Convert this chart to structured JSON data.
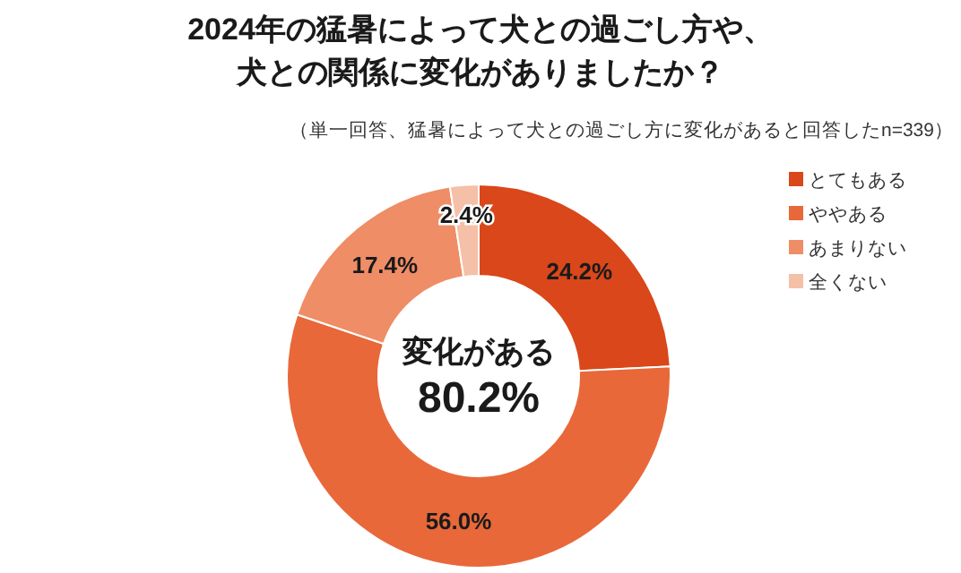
{
  "chart_data": {
    "type": "donut",
    "title": "2024年の猛暑によって犬との過ごし方や、犬との関係に変化がありましたか？",
    "subtitle": "（単一回答、猛暑によって犬との過ごし方に変化があると回答したn=339）",
    "categories": [
      "とてもある",
      "ややある",
      "あまりない",
      "全くない"
    ],
    "values": [
      24.2,
      56.0,
      17.4,
      2.4
    ],
    "value_labels": [
      "24.2%",
      "56.0%",
      "17.4%",
      "2.4%"
    ],
    "colors": [
      "#d9471a",
      "#e8683a",
      "#ef8d66",
      "#f5c0a8"
    ],
    "annotations": [
      "変化がある",
      "80.2%"
    ],
    "legend": "right"
  }
}
